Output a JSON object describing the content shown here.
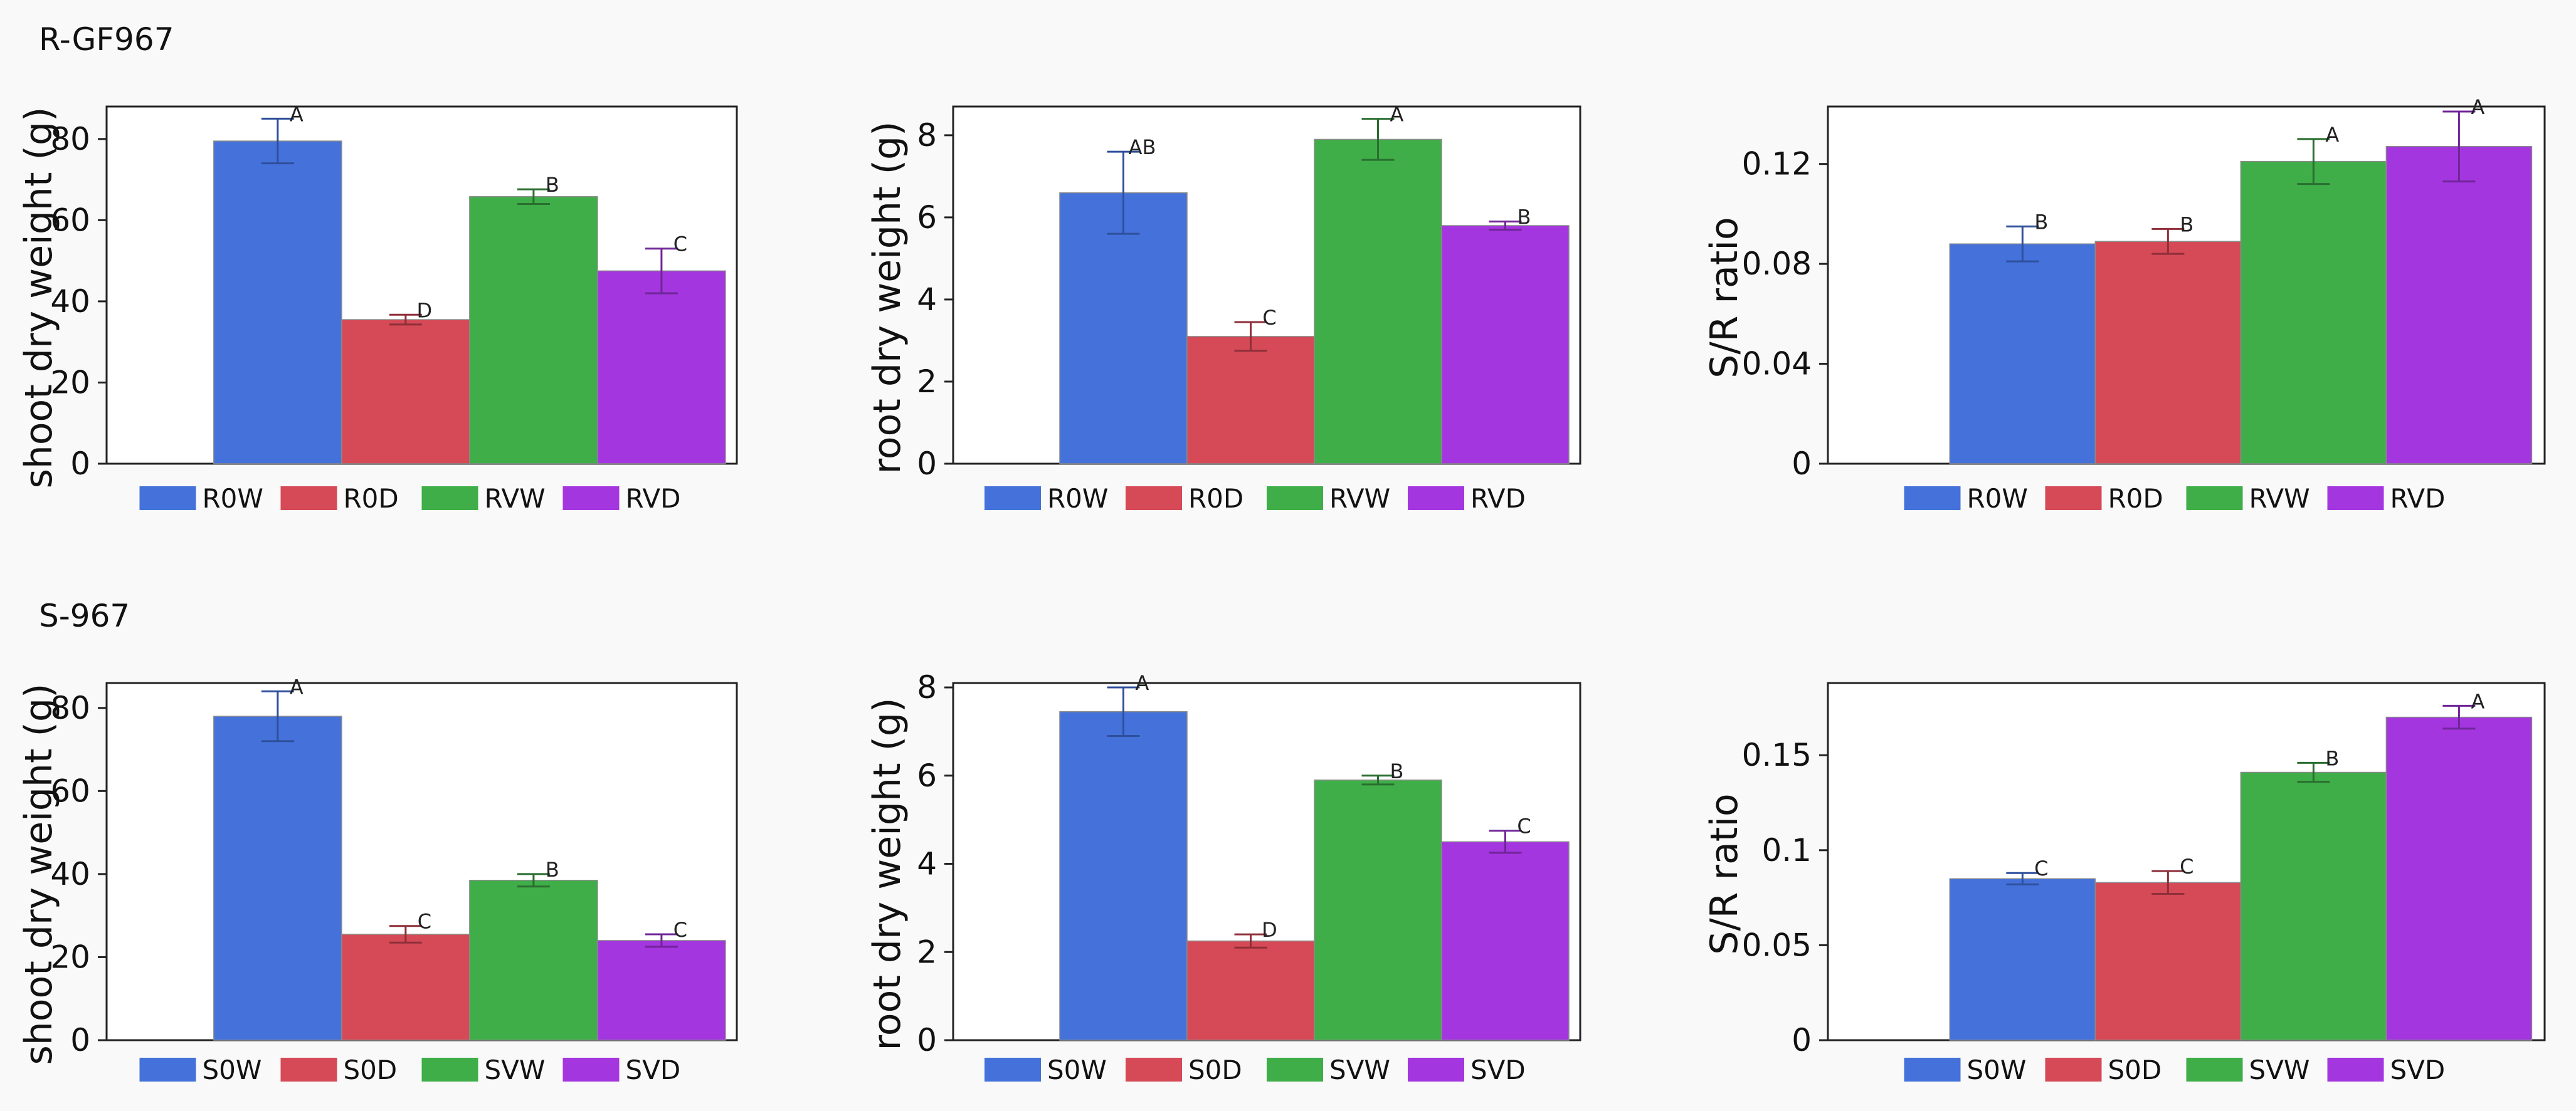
{
  "rows": [
    {
      "title": "R-GF967"
    },
    {
      "title": "S-967"
    }
  ],
  "chart_data": [
    {
      "type": "bar",
      "row": 0,
      "col": 0,
      "ylabel": "shoot dry weight (g)",
      "categories": [
        "R0W",
        "R0D",
        "RVW",
        "RVD"
      ],
      "values": [
        79.5,
        35.5,
        65.8,
        47.5
      ],
      "errors": [
        5.5,
        1.2,
        1.8,
        5.5
      ],
      "letters": [
        "A",
        "D",
        "B",
        "C"
      ],
      "colors": [
        "#4472da",
        "#d54a56",
        "#3fae48",
        "#a436df"
      ],
      "ylim": [
        0,
        88
      ],
      "yticks": [
        0,
        20,
        40,
        60,
        80
      ],
      "legend": [
        "R0W",
        "R0D",
        "RVW",
        "RVD"
      ]
    },
    {
      "type": "bar",
      "row": 0,
      "col": 1,
      "ylabel": "root dry weight (g)",
      "categories": [
        "R0W",
        "R0D",
        "RVW",
        "RVD"
      ],
      "values": [
        6.6,
        3.1,
        7.9,
        5.8
      ],
      "errors": [
        1.0,
        0.35,
        0.5,
        0.1
      ],
      "letters": [
        "AB",
        "C",
        "A",
        "B"
      ],
      "colors": [
        "#4472da",
        "#d54a56",
        "#3fae48",
        "#a436df"
      ],
      "ylim": [
        0,
        8.7
      ],
      "yticks": [
        0,
        2,
        4,
        6,
        8
      ],
      "legend": [
        "R0W",
        "R0D",
        "RVW",
        "RVD"
      ]
    },
    {
      "type": "bar",
      "row": 0,
      "col": 2,
      "ylabel": "S/R ratio",
      "categories": [
        "R0W",
        "R0D",
        "RVW",
        "RVD"
      ],
      "values": [
        0.088,
        0.089,
        0.121,
        0.127
      ],
      "errors": [
        0.007,
        0.005,
        0.009,
        0.014
      ],
      "letters": [
        "B",
        "B",
        "A",
        "A"
      ],
      "colors": [
        "#4472da",
        "#d54a56",
        "#3fae48",
        "#a436df"
      ],
      "ylim": [
        0,
        0.143
      ],
      "yticks": [
        0,
        0.04,
        0.08,
        0.12
      ],
      "ytick_labels": [
        "0",
        "0.04",
        "0.08",
        "0.12"
      ],
      "legend": [
        "R0W",
        "R0D",
        "RVW",
        "RVD"
      ]
    },
    {
      "type": "bar",
      "row": 1,
      "col": 0,
      "ylabel": "shoot dry weight (g)",
      "categories": [
        "S0W",
        "S0D",
        "SVW",
        "SVD"
      ],
      "values": [
        78,
        25.5,
        38.5,
        24
      ],
      "errors": [
        6.0,
        2.0,
        1.5,
        1.5
      ],
      "letters": [
        "A",
        "C",
        "B",
        "C"
      ],
      "colors": [
        "#4472da",
        "#d54a56",
        "#3fae48",
        "#a436df"
      ],
      "ylim": [
        0,
        86
      ],
      "yticks": [
        0,
        20,
        40,
        60,
        80
      ],
      "legend": [
        "S0W",
        "S0D",
        "SVW",
        "SVD"
      ]
    },
    {
      "type": "bar",
      "row": 1,
      "col": 1,
      "ylabel": "root dry weight (g)",
      "categories": [
        "S0W",
        "S0D",
        "SVW",
        "SVD"
      ],
      "values": [
        7.45,
        2.25,
        5.9,
        4.5
      ],
      "errors": [
        0.55,
        0.15,
        0.1,
        0.25
      ],
      "letters": [
        "A",
        "D",
        "B",
        "C"
      ],
      "colors": [
        "#4472da",
        "#d54a56",
        "#3fae48",
        "#a436df"
      ],
      "ylim": [
        0,
        8.1
      ],
      "yticks": [
        0,
        2,
        4,
        6,
        8
      ],
      "legend": [
        "S0W",
        "S0D",
        "SVW",
        "SVD"
      ]
    },
    {
      "type": "bar",
      "row": 1,
      "col": 2,
      "ylabel": "S/R ratio",
      "categories": [
        "S0W",
        "S0D",
        "SVW",
        "SVD"
      ],
      "values": [
        0.085,
        0.083,
        0.141,
        0.17
      ],
      "errors": [
        0.003,
        0.006,
        0.005,
        0.006
      ],
      "letters": [
        "C",
        "C",
        "B",
        "A"
      ],
      "colors": [
        "#4472da",
        "#d54a56",
        "#3fae48",
        "#a436df"
      ],
      "ylim": [
        0,
        0.188
      ],
      "yticks": [
        0,
        0.05,
        0.1,
        0.15
      ],
      "ytick_labels": [
        "0",
        "0.05",
        "0.1",
        "0.15"
      ],
      "legend": [
        "S0W",
        "S0D",
        "SVW",
        "SVD"
      ]
    }
  ]
}
